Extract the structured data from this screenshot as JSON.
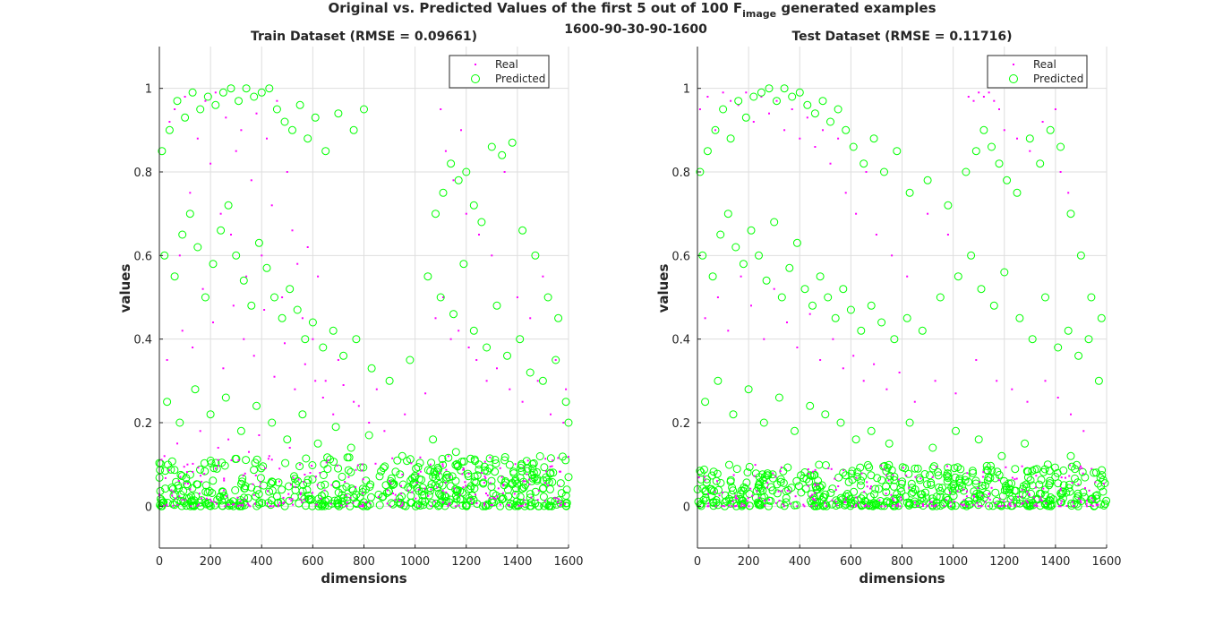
{
  "figure": {
    "suptitle_pre": "Original vs. Predicted Values of the first 5 out of 100 F",
    "suptitle_sub": "image",
    "suptitle_post": " generated examples",
    "architecture": "1600-90-30-90-1600"
  },
  "colors": {
    "real": "#ff00ff",
    "predicted": "#00ff00",
    "axis": "#262626",
    "grid": "#dedede"
  },
  "chart_data": [
    {
      "type": "scatter",
      "title": "Train Dataset (RMSE = 0.09661)",
      "xlabel": "dimensions",
      "ylabel": "values",
      "xlim": [
        0,
        1600
      ],
      "ylim": [
        -0.1,
        1.1
      ],
      "xticks": [
        0,
        200,
        400,
        600,
        800,
        1000,
        1200,
        1400,
        1600
      ],
      "yticks": [
        0,
        0.2,
        0.4,
        0.6,
        0.8,
        1
      ],
      "grid": true,
      "legend": {
        "placement": "top-right",
        "entries": [
          "Real",
          "Predicted"
        ]
      },
      "series": [
        {
          "name": "Real",
          "marker": "dot",
          "x": [
            40,
            60,
            80,
            100,
            120,
            150,
            180,
            200,
            220,
            240,
            260,
            280,
            300,
            320,
            340,
            360,
            380,
            400,
            420,
            440,
            460,
            480,
            500,
            520,
            540,
            560,
            580,
            600,
            620,
            650,
            700,
            760,
            850,
            1100,
            1120,
            1150,
            1180,
            1200,
            1250,
            1300,
            1350,
            1400,
            1450,
            1500,
            1550,
            1590,
            30,
            90,
            130,
            170,
            210,
            250,
            290,
            330,
            370,
            410,
            450,
            490,
            530,
            570,
            610,
            640,
            680,
            720,
            780,
            820,
            880,
            960,
            1040,
            1080,
            1110,
            1140,
            1170,
            1210,
            1240,
            1280,
            1320,
            1370,
            1420,
            1480,
            1530,
            1580,
            20,
            70,
            110,
            160,
            230,
            270,
            310,
            350,
            390,
            430,
            470,
            510,
            550,
            590,
            660,
            740,
            900,
            1060,
            1130,
            1190,
            1260,
            1340,
            1430,
            1520
          ],
          "values": [
            0.92,
            0.95,
            0.6,
            0.98,
            0.75,
            0.88,
            0.97,
            0.82,
            0.99,
            0.7,
            0.93,
            0.65,
            0.85,
            0.9,
            0.55,
            0.78,
            0.94,
            0.6,
            0.88,
            0.72,
            0.97,
            0.5,
            0.8,
            0.66,
            0.58,
            0.45,
            0.62,
            0.4,
            0.55,
            0.3,
            0.35,
            0.25,
            0.28,
            0.95,
            0.85,
            0.78,
            0.9,
            0.7,
            0.65,
            0.6,
            0.8,
            0.5,
            0.45,
            0.55,
            0.35,
            0.28,
            0.35,
            0.42,
            0.38,
            0.52,
            0.44,
            0.33,
            0.48,
            0.4,
            0.36,
            0.47,
            0.31,
            0.39,
            0.28,
            0.34,
            0.3,
            0.26,
            0.22,
            0.29,
            0.24,
            0.2,
            0.18,
            0.22,
            0.27,
            0.45,
            0.5,
            0.4,
            0.42,
            0.38,
            0.35,
            0.3,
            0.33,
            0.28,
            0.25,
            0.3,
            0.22,
            0.2,
            0.12,
            0.15,
            0.1,
            0.18,
            0.14,
            0.16,
            0.11,
            0.13,
            0.17,
            0.12,
            0.09,
            0.14,
            0.1,
            0.08,
            0.11,
            0.07,
            0.06,
            0.1,
            0.12,
            0.09,
            0.08,
            0.07,
            0.06,
            0.05
          ]
        },
        {
          "name": "Predicted",
          "marker": "circle",
          "x": [
            10,
            40,
            70,
            100,
            130,
            160,
            190,
            220,
            250,
            280,
            310,
            340,
            370,
            400,
            430,
            460,
            490,
            520,
            550,
            580,
            610,
            650,
            700,
            760,
            800,
            1080,
            1110,
            1140,
            1170,
            1200,
            1230,
            1260,
            1300,
            1340,
            1380,
            1420,
            1470,
            1520,
            1560,
            1600,
            20,
            60,
            90,
            120,
            150,
            180,
            210,
            240,
            270,
            300,
            330,
            360,
            390,
            420,
            450,
            480,
            510,
            540,
            570,
            600,
            640,
            680,
            720,
            770,
            830,
            900,
            980,
            1050,
            1100,
            1150,
            1190,
            1230,
            1280,
            1320,
            1360,
            1410,
            1450,
            1500,
            1550,
            1590,
            30,
            80,
            140,
            200,
            260,
            320,
            380,
            440,
            500,
            560,
            620,
            690,
            750,
            820,
            950,
            1070,
            1160,
            1250,
            1350,
            1440,
            1530,
            1600
          ],
          "values": [
            0.85,
            0.9,
            0.97,
            0.93,
            0.99,
            0.95,
            0.98,
            0.96,
            0.99,
            1.0,
            0.97,
            1.0,
            0.98,
            0.99,
            1.0,
            0.95,
            0.92,
            0.9,
            0.96,
            0.88,
            0.93,
            0.85,
            0.94,
            0.9,
            0.95,
            0.7,
            0.75,
            0.82,
            0.78,
            0.8,
            0.72,
            0.68,
            0.86,
            0.84,
            0.87,
            0.66,
            0.6,
            0.5,
            0.45,
            0.2,
            0.6,
            0.55,
            0.65,
            0.7,
            0.62,
            0.5,
            0.58,
            0.66,
            0.72,
            0.6,
            0.54,
            0.48,
            0.63,
            0.57,
            0.5,
            0.45,
            0.52,
            0.47,
            0.4,
            0.44,
            0.38,
            0.42,
            0.36,
            0.4,
            0.33,
            0.3,
            0.35,
            0.55,
            0.5,
            0.46,
            0.58,
            0.42,
            0.38,
            0.48,
            0.36,
            0.4,
            0.32,
            0.3,
            0.35,
            0.25,
            0.25,
            0.2,
            0.28,
            0.22,
            0.26,
            0.18,
            0.24,
            0.2,
            0.16,
            0.22,
            0.15,
            0.19,
            0.14,
            0.17,
            0.12,
            0.16,
            0.13,
            0.1,
            0.11,
            0.09,
            0.08,
            0.07
          ]
        }
      ],
      "dense_band": {
        "x_range": [
          0,
          1600
        ],
        "value_range": [
          0,
          0.12
        ]
      }
    },
    {
      "type": "scatter",
      "title": "Test Dataset (RMSE = 0.11716)",
      "xlabel": "dimensions",
      "ylabel": "values",
      "xlim": [
        0,
        1600
      ],
      "ylim": [
        -0.1,
        1.1
      ],
      "xticks": [
        0,
        200,
        400,
        600,
        800,
        1000,
        1200,
        1400,
        1600
      ],
      "yticks": [
        0,
        0.2,
        0.4,
        0.6,
        0.8,
        1
      ],
      "grid": true,
      "legend": {
        "placement": "top-right",
        "entries": [
          "Real",
          "Predicted"
        ]
      },
      "series": [
        {
          "name": "Real",
          "marker": "dot",
          "x": [
            10,
            40,
            70,
            100,
            130,
            160,
            190,
            220,
            250,
            280,
            310,
            340,
            370,
            400,
            430,
            460,
            490,
            520,
            550,
            580,
            620,
            660,
            700,
            760,
            820,
            900,
            980,
            1060,
            1080,
            1100,
            1120,
            1140,
            1160,
            1180,
            1200,
            1250,
            1300,
            1350,
            1400,
            1420,
            1450,
            30,
            80,
            120,
            170,
            210,
            260,
            300,
            350,
            390,
            440,
            480,
            530,
            570,
            610,
            650,
            690,
            740,
            790,
            850,
            930,
            1010,
            1090,
            1170,
            1230,
            1290,
            1360,
            1410,
            1460,
            1510
          ],
          "values": [
            0.95,
            0.98,
            0.9,
            0.99,
            0.97,
            0.96,
            0.99,
            0.92,
            0.98,
            0.94,
            0.97,
            0.9,
            0.95,
            0.88,
            0.93,
            0.86,
            0.9,
            0.82,
            0.88,
            0.75,
            0.7,
            0.8,
            0.65,
            0.6,
            0.55,
            0.7,
            0.65,
            0.98,
            0.97,
            0.99,
            0.98,
            0.99,
            0.97,
            0.95,
            0.9,
            0.88,
            0.85,
            0.92,
            0.95,
            0.8,
            0.75,
            0.45,
            0.5,
            0.42,
            0.55,
            0.48,
            0.4,
            0.52,
            0.44,
            0.38,
            0.46,
            0.35,
            0.4,
            0.33,
            0.36,
            0.3,
            0.34,
            0.28,
            0.32,
            0.25,
            0.3,
            0.27,
            0.35,
            0.3,
            0.28,
            0.25,
            0.3,
            0.26,
            0.22,
            0.18
          ]
        },
        {
          "name": "Predicted",
          "marker": "circle",
          "x": [
            10,
            40,
            70,
            100,
            130,
            160,
            190,
            220,
            250,
            280,
            310,
            340,
            370,
            400,
            430,
            460,
            490,
            520,
            550,
            580,
            610,
            650,
            690,
            730,
            780,
            830,
            900,
            980,
            1050,
            1090,
            1120,
            1150,
            1180,
            1210,
            1250,
            1300,
            1340,
            1380,
            1420,
            1460,
            1500,
            1540,
            1580,
            20,
            60,
            90,
            120,
            150,
            180,
            210,
            240,
            270,
            300,
            330,
            360,
            390,
            420,
            450,
            480,
            510,
            540,
            570,
            600,
            640,
            680,
            720,
            770,
            820,
            880,
            950,
            1020,
            1070,
            1110,
            1160,
            1200,
            1260,
            1310,
            1360,
            1410,
            1450,
            1490,
            1530,
            1570,
            30,
            80,
            140,
            200,
            260,
            320,
            380,
            440,
            500,
            560,
            620,
            680,
            750,
            830,
            920,
            1010,
            1100,
            1190,
            1280,
            1370,
            1460,
            1550
          ],
          "values": [
            0.8,
            0.85,
            0.9,
            0.95,
            0.88,
            0.97,
            0.93,
            0.98,
            0.99,
            1.0,
            0.97,
            1.0,
            0.98,
            0.99,
            0.96,
            0.94,
            0.97,
            0.92,
            0.95,
            0.9,
            0.86,
            0.82,
            0.88,
            0.8,
            0.85,
            0.75,
            0.78,
            0.72,
            0.8,
            0.85,
            0.9,
            0.86,
            0.82,
            0.78,
            0.75,
            0.88,
            0.82,
            0.9,
            0.86,
            0.7,
            0.6,
            0.5,
            0.45,
            0.6,
            0.55,
            0.65,
            0.7,
            0.62,
            0.58,
            0.66,
            0.6,
            0.54,
            0.68,
            0.5,
            0.57,
            0.63,
            0.52,
            0.48,
            0.55,
            0.5,
            0.45,
            0.52,
            0.47,
            0.42,
            0.48,
            0.44,
            0.4,
            0.45,
            0.42,
            0.5,
            0.55,
            0.6,
            0.52,
            0.48,
            0.56,
            0.45,
            0.4,
            0.5,
            0.38,
            0.42,
            0.36,
            0.4,
            0.3,
            0.25,
            0.3,
            0.22,
            0.28,
            0.2,
            0.26,
            0.18,
            0.24,
            0.22,
            0.2,
            0.16,
            0.18,
            0.15,
            0.2,
            0.14,
            0.18,
            0.16,
            0.12,
            0.15,
            0.1,
            0.12,
            0.08
          ]
        }
      ],
      "dense_band": {
        "x_range": [
          0,
          1600
        ],
        "value_range": [
          0,
          0.1
        ]
      }
    }
  ]
}
